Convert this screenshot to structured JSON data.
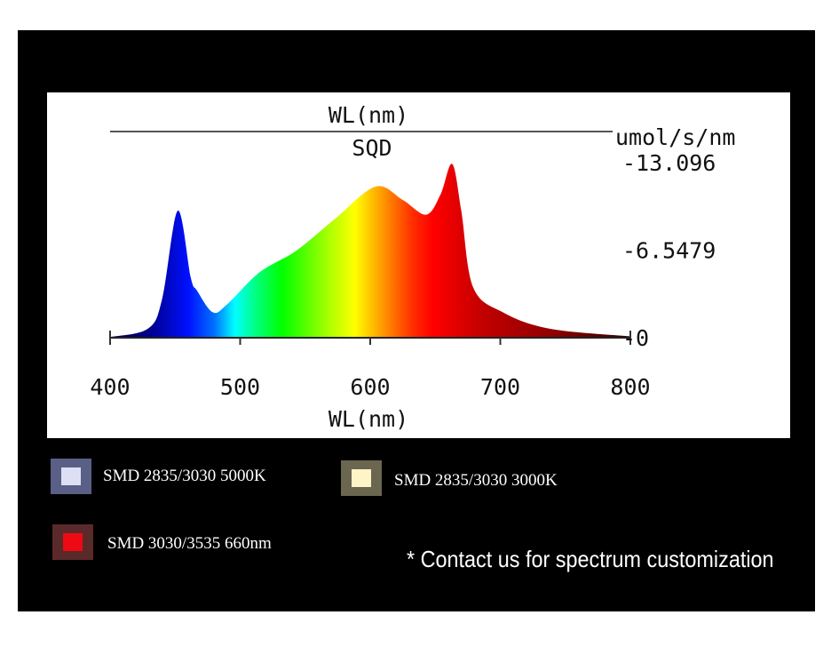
{
  "chart_data": {
    "type": "area",
    "title_top": "WL(nm)",
    "series_name": "SQD",
    "xlabel": "WL(nm)",
    "ylabel": "umol/s/nm",
    "xlim": [
      400,
      800
    ],
    "ylim": [
      0,
      13.096
    ],
    "x_ticks": [
      "400",
      "500",
      "600",
      "700",
      "800"
    ],
    "y_ticks": [
      "-13.096",
      "-6.5479",
      "-0"
    ],
    "x": [
      400,
      429,
      440,
      452,
      462,
      467,
      479,
      490,
      515,
      543,
      573,
      604,
      625,
      643,
      654,
      663,
      670,
      679,
      702,
      738,
      800
    ],
    "values": [
      0.05,
      0.67,
      2.9,
      9.5,
      4.5,
      3.5,
      1.9,
      2.5,
      4.9,
      6.5,
      8.9,
      11.3,
      10.3,
      9.2,
      10.7,
      13.0,
      9.5,
      3.8,
      1.9,
      0.67,
      0.1
    ]
  },
  "legend": [
    {
      "label": "SMD 2835/3030 5000K",
      "color": "#dde0f5",
      "border": "#5a5f86"
    },
    {
      "label": "SMD 2835/3030 3000K",
      "color": "#fff4c8",
      "border": "#6b6650"
    },
    {
      "label": "SMD 3030/3535 660nm",
      "color": "#ee0a14",
      "border": "#5a2a2a"
    }
  ],
  "note": "* Contact us for spectrum customization"
}
